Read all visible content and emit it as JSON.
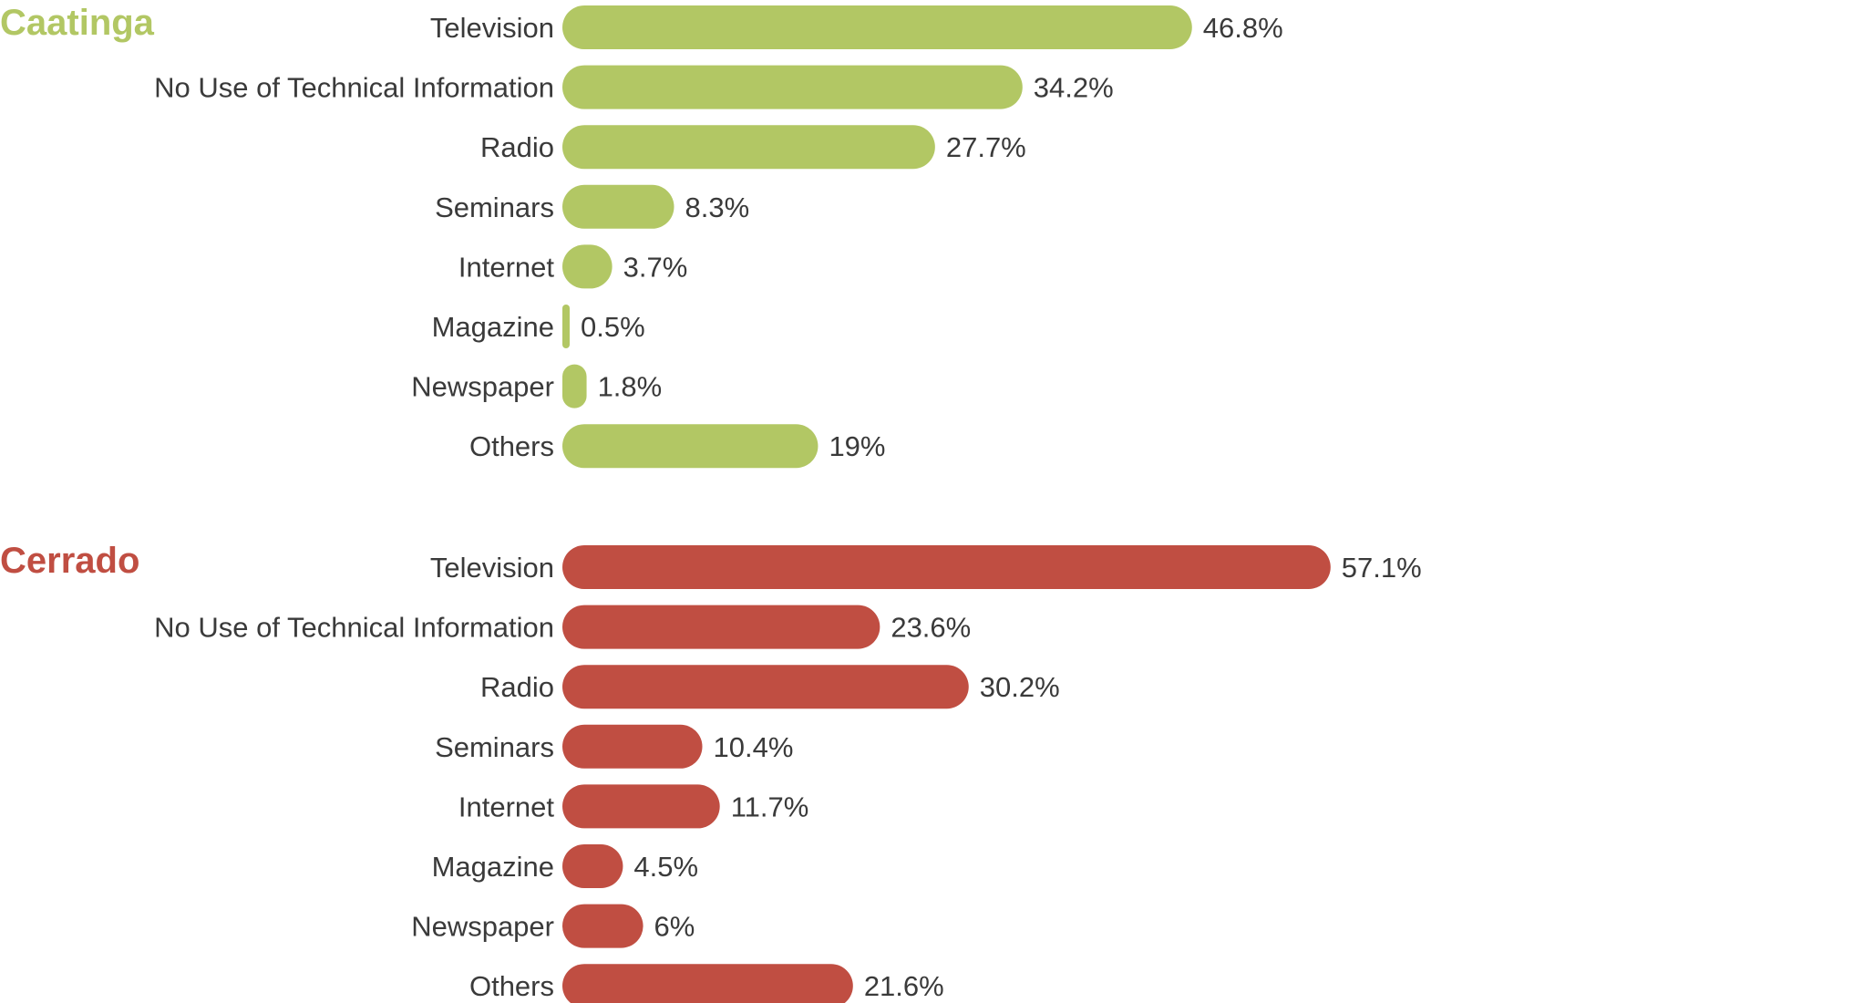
{
  "chart_data": [
    {
      "type": "bar",
      "orientation": "horizontal",
      "title": "Caatinga",
      "color": "#b2c764",
      "categories": [
        "Television",
        "No Use of Technical Information",
        "Radio",
        "Seminars",
        "Internet",
        "Magazine",
        "Newspaper",
        "Others"
      ],
      "values": [
        46.8,
        34.2,
        27.7,
        8.3,
        3.7,
        0.5,
        1.8,
        19
      ],
      "value_labels": [
        "46.8%",
        "34.2%",
        "27.7%",
        "8.3%",
        "3.7%",
        "0.5%",
        "1.8%",
        "19%"
      ],
      "unit": "%",
      "xlim": [
        0,
        100
      ],
      "grid": false
    },
    {
      "type": "bar",
      "orientation": "horizontal",
      "title": "Cerrado",
      "color": "#c04e42",
      "categories": [
        "Television",
        "No Use of Technical Information",
        "Radio",
        "Seminars",
        "Internet",
        "Magazine",
        "Newspaper",
        "Others"
      ],
      "values": [
        57.1,
        23.6,
        30.2,
        10.4,
        11.7,
        4.5,
        6,
        21.6
      ],
      "value_labels": [
        "57.1%",
        "23.6%",
        "30.2%",
        "10.4%",
        "11.7%",
        "4.5%",
        "6%",
        "21.6%"
      ],
      "unit": "%",
      "xlim": [
        0,
        100
      ],
      "grid": false
    }
  ]
}
